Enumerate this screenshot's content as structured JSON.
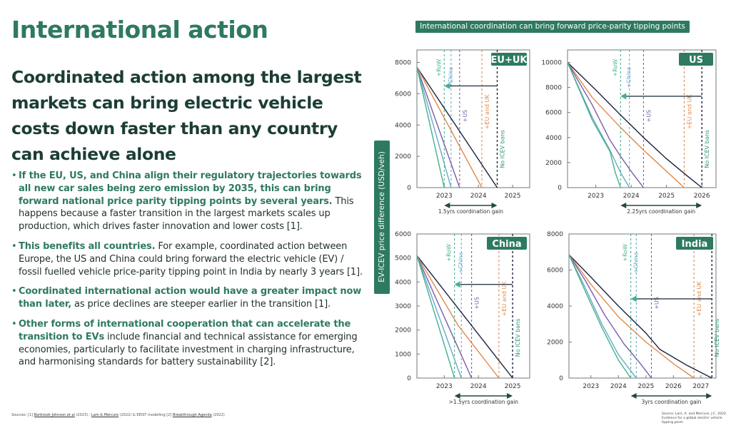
{
  "page": {
    "title": "International action",
    "subtitle": "Coordinated action among the largest markets can bring electric vehicle costs down faster than any country can achieve alone",
    "bullets": [
      {
        "highlight": "If the EU, US, and China align their regulatory trajectories towards all new car sales being zero emission by 2035, this can bring forward national price parity tipping points by several years.",
        "rest": " This happens because a faster transition in the largest markets scales up production, which drives faster innovation and lower costs [1]."
      },
      {
        "highlight": "This benefits all countries.",
        "rest": " For example, coordinated action between Europe, the US and China could bring forward the electric vehicle (EV) / fossil fuelled vehicle price-parity tipping point in India by nearly 3 years [1]."
      },
      {
        "highlight": "Coordinated international action would have a greater impact now than later,",
        "rest": " as price declines are steeper earlier in the transition [1]."
      },
      {
        "highlight": "Other forms of international cooperation that can accelerate the transition to EVs",
        "rest": " include financial and technical assistance for emerging economies, particularly to facilitate investment in charging infrastructure, and harmonising standards for battery sustainability [2]."
      }
    ],
    "sources": {
      "prefix": "Sources: [1] ",
      "link1": "Barbrook-Johnson et al",
      "mid1": " (2023) ; ",
      "link2": "Lam & Mercure",
      "mid2": " (2022) & EEIST modelling [2] ",
      "link3": "Breakthrough Agenda",
      "suffix": " (2022)"
    },
    "figure_banner": "International coordination can bring forward price-parity tipping points",
    "shared_ylabel": "EV-ICEV price difference (USD/veh)",
    "source_note": "Source: Lam, A. and Mercure, J.F., 2022. Evidence for a global electric vehicle tipping point."
  },
  "colors": {
    "brand_green": "#2e7a60",
    "dark_text": "#1b3d36",
    "RoW": "#45b08c",
    "China": "#6aa9c9",
    "US": "#7b5ea7",
    "EU and UK": "#e0894a",
    "No ICEV bans": "#1c2340",
    "arrow_head": "#45b08c",
    "no_ban_label": "#2e9a70"
  },
  "chart_data": [
    {
      "type": "line",
      "title": "EU+UK",
      "xlabel": "",
      "ylabel": "EV-ICEV price difference (USD/veh)",
      "xlim": [
        2022.2,
        2025.5
      ],
      "ylim": [
        0,
        8800
      ],
      "xticks": [
        2023,
        2024,
        2025
      ],
      "yticks": [
        0,
        2000,
        4000,
        6000,
        8000
      ],
      "series": [
        {
          "name": "+RoW",
          "points": [
            [
              2022.2,
              7700
            ],
            [
              2023.0,
              0
            ]
          ]
        },
        {
          "name": "+China",
          "points": [
            [
              2022.2,
              7700
            ],
            [
              2023.2,
              0
            ]
          ]
        },
        {
          "name": "+US",
          "points": [
            [
              2022.2,
              7700
            ],
            [
              2023.45,
              0
            ]
          ]
        },
        {
          "name": "+EU and UK",
          "points": [
            [
              2022.2,
              7700
            ],
            [
              2024.1,
              0
            ]
          ]
        },
        {
          "name": "No ICEV bans",
          "points": [
            [
              2022.2,
              7700
            ],
            [
              2024.55,
              0
            ]
          ]
        }
      ],
      "tipping_points": {
        "+RoW": 2023.0,
        "+China": 2023.2,
        "+US": 2023.45,
        "+EU and UK": 2024.1,
        "No ICEV bans": 2024.55
      },
      "arrow": {
        "from": 2024.55,
        "to": 2023.0,
        "y": 6500
      },
      "gain_label": "1.5yrs coordination gain"
    },
    {
      "type": "line",
      "title": "US",
      "xlabel": "",
      "ylabel": "",
      "xlim": [
        2022.2,
        2026.4
      ],
      "ylim": [
        0,
        11000
      ],
      "xticks": [
        2023,
        2024,
        2025,
        2026
      ],
      "yticks": [
        0,
        2000,
        4000,
        6000,
        8000,
        10000
      ],
      "series": [
        {
          "name": "+RoW",
          "points": [
            [
              2022.2,
              10000
            ],
            [
              2022.9,
              5400
            ],
            [
              2023.4,
              2900
            ],
            [
              2023.55,
              1200
            ],
            [
              2023.7,
              0
            ]
          ]
        },
        {
          "name": "+China",
          "points": [
            [
              2022.2,
              10000
            ],
            [
              2022.9,
              5600
            ],
            [
              2023.4,
              3000
            ],
            [
              2023.7,
              1200
            ],
            [
              2023.95,
              0
            ]
          ]
        },
        {
          "name": "+US",
          "points": [
            [
              2022.2,
              10000
            ],
            [
              2022.9,
              6600
            ],
            [
              2023.4,
              3800
            ],
            [
              2023.7,
              2500
            ],
            [
              2024.0,
              1300
            ],
            [
              2024.35,
              0
            ]
          ]
        },
        {
          "name": "+EU and UK",
          "points": [
            [
              2022.2,
              10000
            ],
            [
              2022.9,
              7200
            ],
            [
              2023.7,
              4800
            ],
            [
              2024.35,
              3000
            ],
            [
              2025.0,
              1300
            ],
            [
              2025.5,
              0
            ]
          ]
        },
        {
          "name": "No ICEV bans",
          "points": [
            [
              2022.2,
              10000
            ],
            [
              2023.0,
              7800
            ],
            [
              2023.7,
              5800
            ],
            [
              2024.35,
              4000
            ],
            [
              2025.0,
              2300
            ],
            [
              2025.6,
              900
            ],
            [
              2026.0,
              0
            ]
          ]
        }
      ],
      "tipping_points": {
        "+RoW": 2023.7,
        "+China": 2023.95,
        "+US": 2024.35,
        "+EU and UK": 2025.5,
        "No ICEV bans": 2026.0
      },
      "arrow": {
        "from": 2026.0,
        "to": 2023.7,
        "y": 7300
      },
      "gain_label": "2.25yrs coordination gain"
    },
    {
      "type": "line",
      "title": "China",
      "xlabel": "",
      "ylabel": "",
      "xlim": [
        2022.2,
        2025.5
      ],
      "ylim": [
        0,
        6000
      ],
      "xticks": [
        2023,
        2024,
        2025
      ],
      "yticks": [
        0,
        1000,
        2000,
        3000,
        4000,
        5000,
        6000
      ],
      "series": [
        {
          "name": "+RoW",
          "points": [
            [
              2022.2,
              5100
            ],
            [
              2023.3,
              0
            ]
          ]
        },
        {
          "name": "+China",
          "points": [
            [
              2022.2,
              5100
            ],
            [
              2023.5,
              0
            ]
          ]
        },
        {
          "name": "+US",
          "points": [
            [
              2022.2,
              5100
            ],
            [
              2023.8,
              0
            ]
          ]
        },
        {
          "name": "+EU and UK",
          "points": [
            [
              2022.2,
              5100
            ],
            [
              2023.4,
              2200
            ],
            [
              2024.6,
              0
            ]
          ]
        },
        {
          "name": "No ICEV bans",
          "points": [
            [
              2022.2,
              5100
            ],
            [
              2025.0,
              0
            ]
          ]
        }
      ],
      "tipping_points": {
        "+RoW": 2023.3,
        "+China": 2023.5,
        "+US": 2023.8,
        "+EU and UK": 2024.6,
        "No ICEV bans": 2025.0
      },
      "arrow": {
        "from": 2025.0,
        "to": 2023.3,
        "y": 3900
      },
      "gain_label": ">1.5yrs coordination gain"
    },
    {
      "type": "line",
      "title": "India",
      "xlabel": "",
      "ylabel": "",
      "xlim": [
        2022.2,
        2027.55
      ],
      "ylim": [
        0,
        8000
      ],
      "xticks": [
        2023,
        2024,
        2025,
        2026,
        2027
      ],
      "yticks": [
        0,
        2000,
        4000,
        6000,
        8000
      ],
      "series": [
        {
          "name": "+RoW",
          "points": [
            [
              2022.2,
              6850
            ],
            [
              2022.8,
              4800
            ],
            [
              2023.4,
              2800
            ],
            [
              2024.0,
              1000
            ],
            [
              2024.45,
              0
            ]
          ]
        },
        {
          "name": "+China",
          "points": [
            [
              2022.2,
              6850
            ],
            [
              2022.8,
              5000
            ],
            [
              2023.4,
              3000
            ],
            [
              2024.0,
              1300
            ],
            [
              2024.65,
              0
            ]
          ]
        },
        {
          "name": "+US",
          "points": [
            [
              2022.2,
              6850
            ],
            [
              2022.8,
              5400
            ],
            [
              2023.5,
              3500
            ],
            [
              2024.2,
              1900
            ],
            [
              2024.8,
              800
            ],
            [
              2025.2,
              0
            ]
          ]
        },
        {
          "name": "+EU and UK",
          "points": [
            [
              2022.2,
              6850
            ],
            [
              2023.0,
              5200
            ],
            [
              2024.0,
              3400
            ],
            [
              2025.0,
              2000
            ],
            [
              2026.0,
              800
            ],
            [
              2026.75,
              0
            ]
          ]
        },
        {
          "name": "No ICEV bans",
          "points": [
            [
              2022.2,
              6850
            ],
            [
              2023.0,
              5600
            ],
            [
              2024.0,
              4000
            ],
            [
              2025.0,
              2500
            ],
            [
              2025.5,
              1600
            ],
            [
              2026.5,
              700
            ],
            [
              2027.4,
              0
            ]
          ]
        }
      ],
      "tipping_points": {
        "+RoW": 2024.45,
        "+China": 2024.65,
        "+US": 2025.2,
        "+EU and UK": 2026.75,
        "No ICEV bans": 2027.4
      },
      "arrow": {
        "from": 2027.4,
        "to": 2024.45,
        "y": 4400
      },
      "gain_label": "3yrs coordination gain"
    }
  ]
}
